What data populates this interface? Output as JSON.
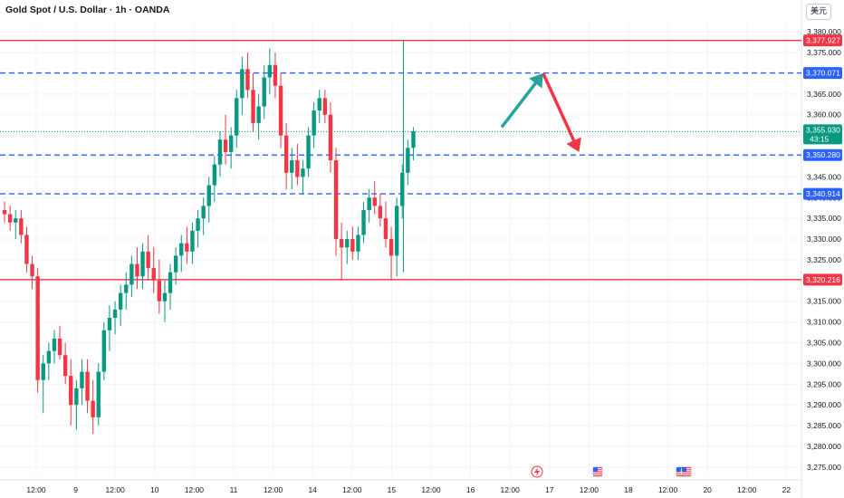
{
  "header": {
    "title": "Gold Spot / U.S. Dollar · 1h · OANDA",
    "currency": "美元"
  },
  "colors": {
    "up": "#089981",
    "down": "#f23645",
    "support_line": "#f23645",
    "dashed_line": "#2962ff",
    "arrow_up": "#26a69a",
    "arrow_down": "#f23645",
    "current": "#089981"
  },
  "icons": [
    "lightning-icon",
    "us-flag-icon",
    "us-flag-icon",
    "us-flag-icon"
  ],
  "chart_data": {
    "type": "candlestick",
    "ylim": [
      3273,
      3382
    ],
    "y_ticks": [
      "3,380.000",
      "3,375.000",
      "3,370.000",
      "3,365.000",
      "3,360.000",
      "3,355.000",
      "3,350.000",
      "3,345.000",
      "3,340.000",
      "3,335.000",
      "3,330.000",
      "3,325.000",
      "3,320.000",
      "3,315.000",
      "3,310.000",
      "3,305.000",
      "3,300.000",
      "3,295.000",
      "3,290.000",
      "3,285.000",
      "3,280.000",
      "3,275.000"
    ],
    "x_ticks": [
      "12:00",
      "9",
      "12:00",
      "10",
      "12:00",
      "11",
      "12:00",
      "14",
      "12:00",
      "15",
      "12:00",
      "16",
      "12:00",
      "17",
      "12:00",
      "18",
      "12:00",
      "20",
      "12:00",
      "22"
    ],
    "levels": [
      {
        "value": 3377.927,
        "label": "3,377.927",
        "style": "solid",
        "color": "#f23645"
      },
      {
        "value": 3370.071,
        "label": "3,370.071",
        "style": "dashed",
        "color": "#2962ff"
      },
      {
        "value": 3350.28,
        "label": "3,350.280",
        "style": "dashed",
        "color": "#2962ff"
      },
      {
        "value": 3340.914,
        "label": "3,340.914",
        "style": "dashed",
        "color": "#2962ff"
      },
      {
        "value": 3320.216,
        "label": "3,320.216",
        "style": "solid",
        "color": "#f23645"
      }
    ],
    "current_price": {
      "value": 3355.93,
      "label": "3,355.930",
      "countdown": "43:15"
    },
    "projection": {
      "up": [
        {
          "x": 90,
          "y": 3357
        },
        {
          "x": 97.5,
          "y": 3370
        }
      ],
      "down": [
        {
          "x": 97.5,
          "y": 3370
        },
        {
          "x": 104,
          "y": 3351
        }
      ]
    },
    "candles": [
      [
        3337,
        3339,
        3334,
        3336
      ],
      [
        3336,
        3338,
        3332,
        3334
      ],
      [
        3334,
        3337,
        3330,
        3335
      ],
      [
        3335,
        3337,
        3329,
        3331
      ],
      [
        3331,
        3333,
        3322,
        3324
      ],
      [
        3324,
        3326,
        3318,
        3321
      ],
      [
        3321,
        3323,
        3293,
        3296
      ],
      [
        3296,
        3302,
        3288,
        3300
      ],
      [
        3300,
        3305,
        3296,
        3303
      ],
      [
        3303,
        3308,
        3300,
        3306
      ],
      [
        3306,
        3309,
        3301,
        3302
      ],
      [
        3302,
        3305,
        3295,
        3297
      ],
      [
        3297,
        3301,
        3285,
        3290
      ],
      [
        3290,
        3296,
        3284,
        3294
      ],
      [
        3294,
        3301,
        3290,
        3298
      ],
      [
        3298,
        3301,
        3288,
        3291
      ],
      [
        3291,
        3296,
        3283,
        3287
      ],
      [
        3287,
        3300,
        3285,
        3298
      ],
      [
        3298,
        3310,
        3296,
        3308
      ],
      [
        3308,
        3314,
        3303,
        3311
      ],
      [
        3311,
        3315,
        3307,
        3313
      ],
      [
        3313,
        3319,
        3309,
        3317
      ],
      [
        3317,
        3322,
        3313,
        3319
      ],
      [
        3319,
        3326,
        3316,
        3324
      ],
      [
        3324,
        3328,
        3318,
        3321
      ],
      [
        3321,
        3329,
        3318,
        3327
      ],
      [
        3327,
        3331,
        3320,
        3323
      ],
      [
        3323,
        3328,
        3317,
        3320
      ],
      [
        3320,
        3325,
        3312,
        3315
      ],
      [
        3315,
        3320,
        3310,
        3317
      ],
      [
        3317,
        3324,
        3313,
        3322
      ],
      [
        3322,
        3328,
        3319,
        3326
      ],
      [
        3326,
        3331,
        3322,
        3329
      ],
      [
        3329,
        3333,
        3324,
        3327
      ],
      [
        3327,
        3334,
        3324,
        3332
      ],
      [
        3332,
        3337,
        3328,
        3335
      ],
      [
        3335,
        3340,
        3331,
        3338
      ],
      [
        3338,
        3345,
        3334,
        3343
      ],
      [
        3343,
        3350,
        3339,
        3348
      ],
      [
        3348,
        3356,
        3345,
        3354
      ],
      [
        3354,
        3360,
        3348,
        3351
      ],
      [
        3351,
        3357,
        3347,
        3355
      ],
      [
        3355,
        3366,
        3352,
        3364
      ],
      [
        3364,
        3374,
        3360,
        3371
      ],
      [
        3371,
        3375,
        3364,
        3366
      ],
      [
        3366,
        3370,
        3356,
        3358
      ],
      [
        3358,
        3365,
        3354,
        3362
      ],
      [
        3362,
        3372,
        3359,
        3369
      ],
      [
        3369,
        3376,
        3365,
        3372
      ],
      [
        3372,
        3375,
        3364,
        3367
      ],
      [
        3367,
        3370,
        3352,
        3355
      ],
      [
        3355,
        3358,
        3342,
        3346
      ],
      [
        3346,
        3352,
        3342,
        3349
      ],
      [
        3349,
        3353,
        3343,
        3345
      ],
      [
        3345,
        3349,
        3341,
        3347
      ],
      [
        3347,
        3357,
        3345,
        3355
      ],
      [
        3355,
        3363,
        3352,
        3361
      ],
      [
        3361,
        3366,
        3358,
        3364
      ],
      [
        3364,
        3366,
        3358,
        3360
      ],
      [
        3360,
        3363,
        3346,
        3349
      ],
      [
        3349,
        3352,
        3326,
        3330
      ],
      [
        3330,
        3334,
        3320,
        3328
      ],
      [
        3328,
        3332,
        3324,
        3330
      ],
      [
        3330,
        3333,
        3325,
        3327
      ],
      [
        3327,
        3333,
        3325,
        3331
      ],
      [
        3331,
        3339,
        3329,
        3337
      ],
      [
        3337,
        3342,
        3334,
        3340
      ],
      [
        3340,
        3344,
        3336,
        3338
      ],
      [
        3338,
        3341,
        3333,
        3335
      ],
      [
        3335,
        3339,
        3328,
        3330
      ],
      [
        3330,
        3333,
        3320,
        3326
      ],
      [
        3326,
        3340,
        3321,
        3338
      ],
      [
        3338,
        3348,
        3335,
        3346
      ],
      [
        3346,
        3354,
        3343,
        3352
      ],
      [
        3352,
        3357,
        3349,
        3356
      ]
    ]
  }
}
